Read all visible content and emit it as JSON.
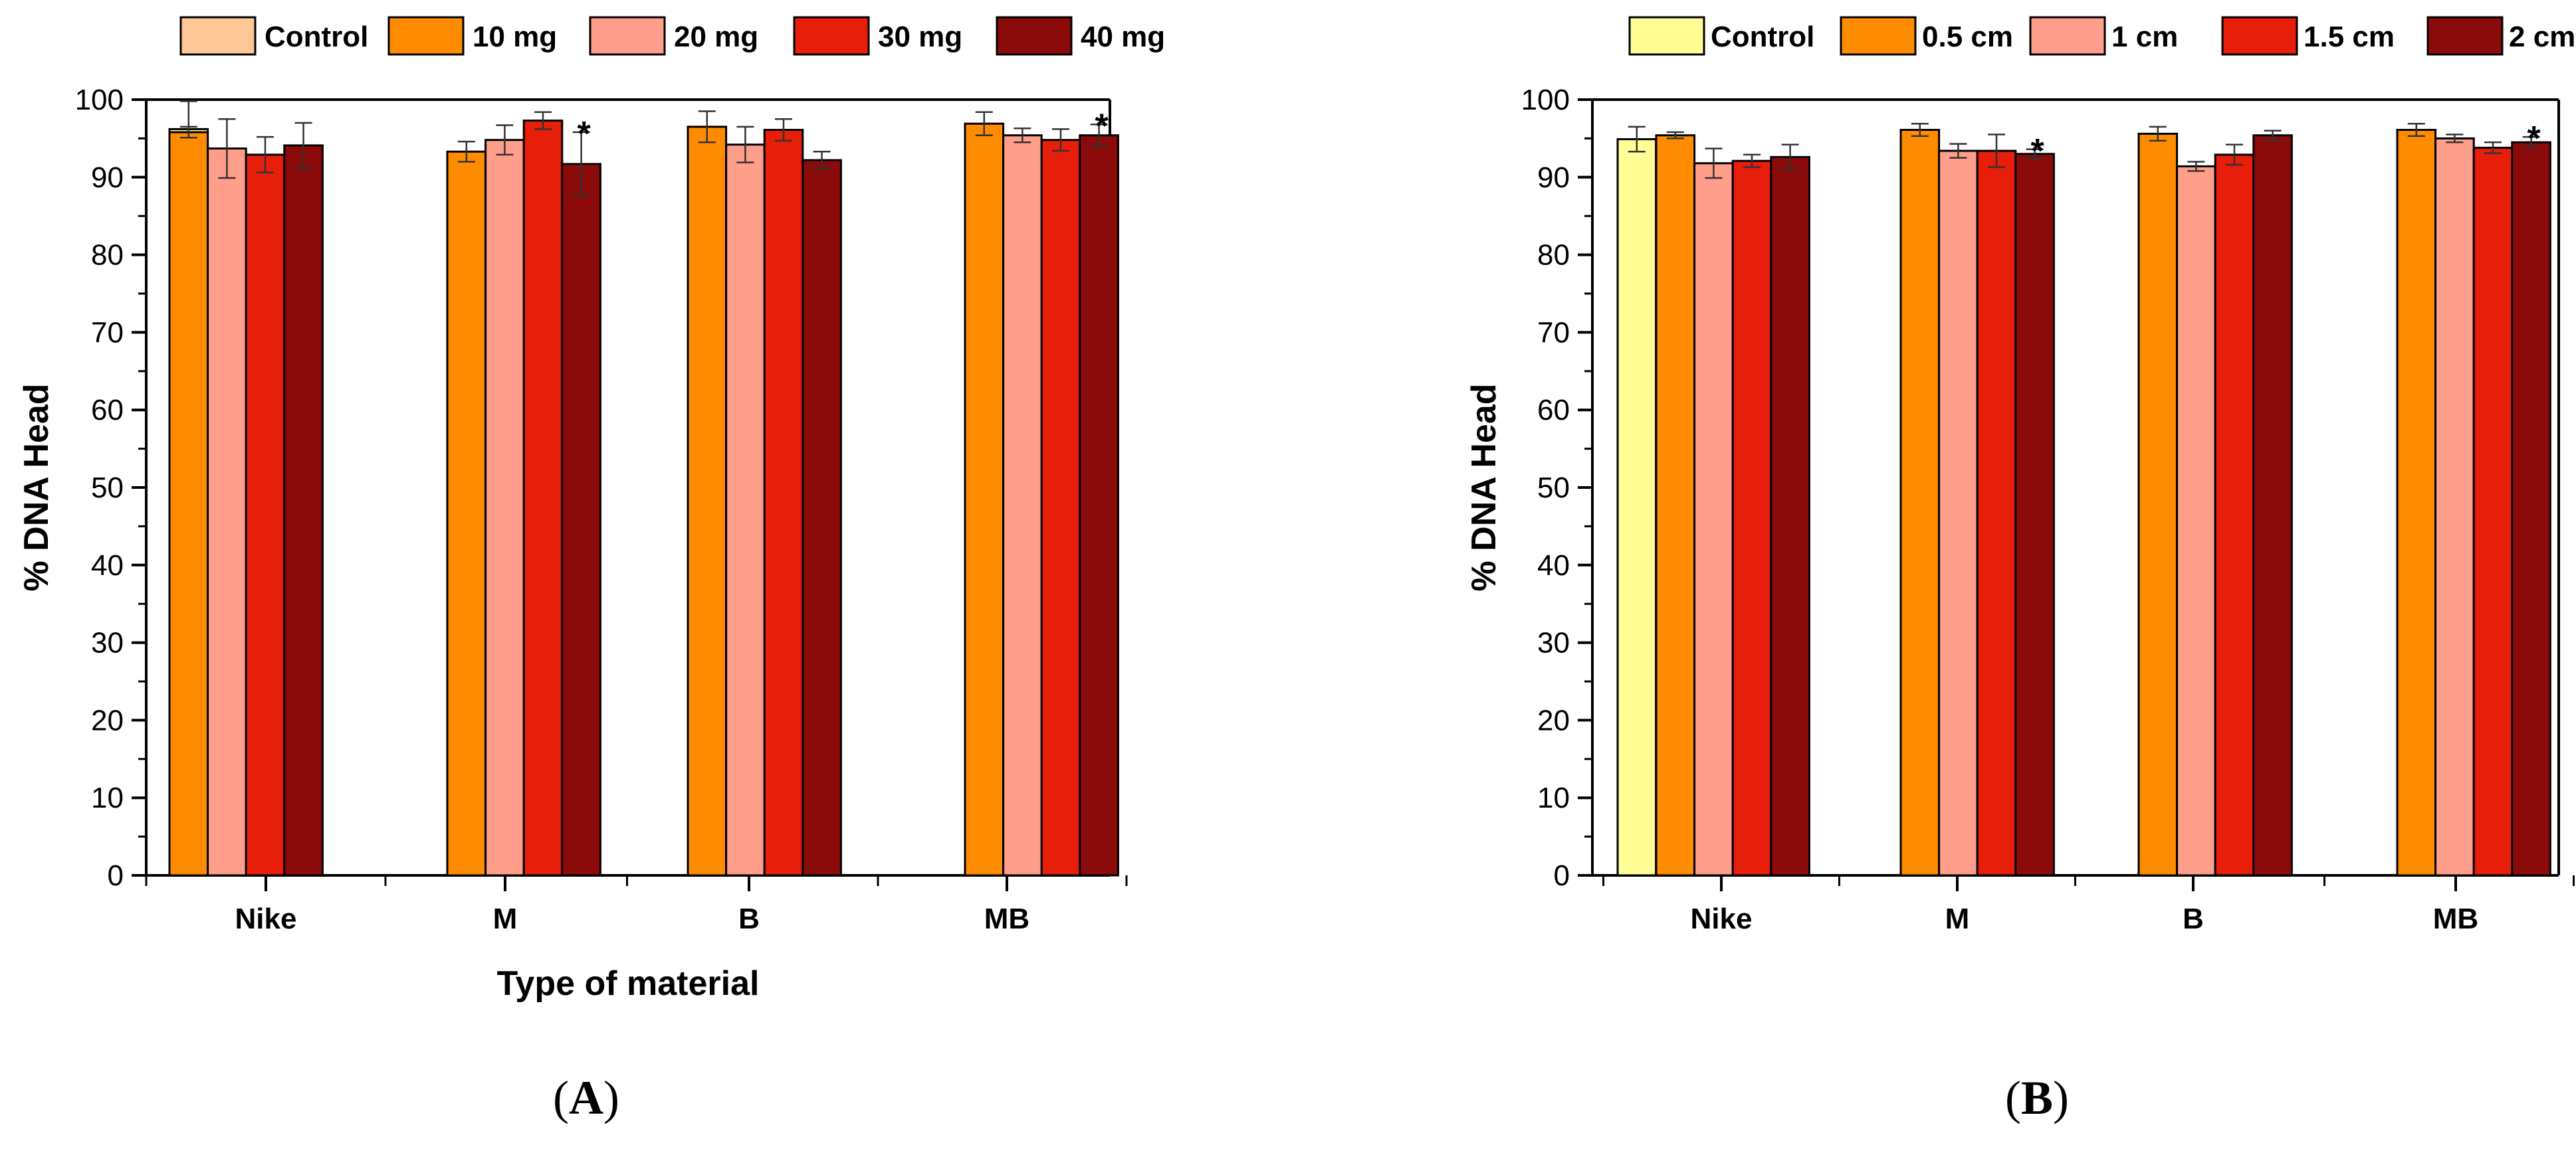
{
  "panels": [
    {
      "panel_label_open": "(",
      "panel_label_letter": "A",
      "panel_label_close": ")"
    },
    {
      "panel_label_open": "(",
      "panel_label_letter": "B",
      "panel_label_close": ")"
    }
  ],
  "chart_data": [
    {
      "type": "bar",
      "title": "",
      "xlabel": "Type of material",
      "ylabel": "% DNA Head",
      "ylim": [
        0,
        100
      ],
      "yticks": [
        0,
        10,
        20,
        30,
        40,
        50,
        60,
        70,
        80,
        90,
        100
      ],
      "grid": false,
      "legend_position": "top",
      "categories": [
        "Nike",
        "M",
        "B",
        "MB"
      ],
      "legend": [
        {
          "name": "Control",
          "color": "#FFC896"
        },
        {
          "name": "10 mg",
          "color": "#FF8C00"
        },
        {
          "name": "20 mg",
          "color": "#FF9E8A"
        },
        {
          "name": "30 mg",
          "color": "#E61E0A"
        },
        {
          "name": "40 mg",
          "color": "#8B0A0A"
        }
      ],
      "series": [
        {
          "name": "Control",
          "color": "#FFFF96",
          "values": [
            96.2,
            null,
            null,
            null
          ],
          "errors": [
            3.6,
            null,
            null,
            null
          ]
        },
        {
          "name": "10 mg",
          "color": "#FF8C00",
          "values": [
            95.8,
            93.3,
            96.5,
            96.9
          ],
          "errors": [
            0.7,
            1.3,
            2.0,
            1.5
          ]
        },
        {
          "name": "20 mg",
          "color": "#FF9E8A",
          "values": [
            93.7,
            94.8,
            94.2,
            95.4
          ],
          "errors": [
            3.8,
            1.9,
            2.3,
            0.9
          ]
        },
        {
          "name": "30 mg",
          "color": "#E61E0A",
          "values": [
            92.9,
            97.3,
            96.1,
            94.8
          ],
          "errors": [
            2.3,
            1.1,
            1.4,
            1.4
          ]
        },
        {
          "name": "40 mg",
          "color": "#8B0A0A",
          "values": [
            94.1,
            91.7,
            92.2,
            95.4
          ],
          "errors": [
            2.9,
            4.1,
            1.1,
            1.4
          ]
        }
      ],
      "annotations": [
        {
          "text": "*",
          "category": "M",
          "series": "40 mg"
        },
        {
          "text": "*",
          "category": "MB",
          "series": "40 mg"
        }
      ]
    },
    {
      "type": "bar",
      "title": "",
      "xlabel": "",
      "ylabel": "% DNA Head",
      "ylim": [
        0,
        100
      ],
      "yticks": [
        0,
        10,
        20,
        30,
        40,
        50,
        60,
        70,
        80,
        90,
        100
      ],
      "grid": false,
      "legend_position": "top",
      "categories": [
        "Nike",
        "M",
        "B",
        "MB"
      ],
      "legend": [
        {
          "name": "Control",
          "color": "#FFFF96"
        },
        {
          "name": "0.5 cm",
          "color": "#FF8C00"
        },
        {
          "name": "1 cm",
          "color": "#FF9E8A"
        },
        {
          "name": "1.5 cm",
          "color": "#E61E0A"
        },
        {
          "name": "2 cm",
          "color": "#8B0A0A"
        }
      ],
      "series": [
        {
          "name": "Control",
          "color": "#FFFF96",
          "values": [
            94.9,
            null,
            null,
            null
          ],
          "errors": [
            1.6,
            null,
            null,
            null
          ]
        },
        {
          "name": "0.5 cm",
          "color": "#FF8C00",
          "values": [
            95.4,
            96.1,
            95.6,
            96.1
          ],
          "errors": [
            0.4,
            0.8,
            0.9,
            0.8
          ]
        },
        {
          "name": "1 cm",
          "color": "#FF9E8A",
          "values": [
            91.8,
            93.4,
            91.4,
            95.0
          ],
          "errors": [
            1.9,
            0.9,
            0.6,
            0.5
          ]
        },
        {
          "name": "1.5 cm",
          "color": "#E61E0A",
          "values": [
            92.1,
            93.4,
            92.9,
            93.8
          ],
          "errors": [
            0.8,
            2.1,
            1.3,
            0.7
          ]
        },
        {
          "name": "2 cm",
          "color": "#8B0A0A",
          "values": [
            92.6,
            93.0,
            95.4,
            94.5
          ],
          "errors": [
            1.6,
            0.6,
            0.6,
            0.7
          ]
        }
      ],
      "annotations": [
        {
          "text": "*",
          "category": "M",
          "series": "2 cm"
        },
        {
          "text": "*",
          "category": "MB",
          "series": "2 cm"
        }
      ]
    }
  ]
}
